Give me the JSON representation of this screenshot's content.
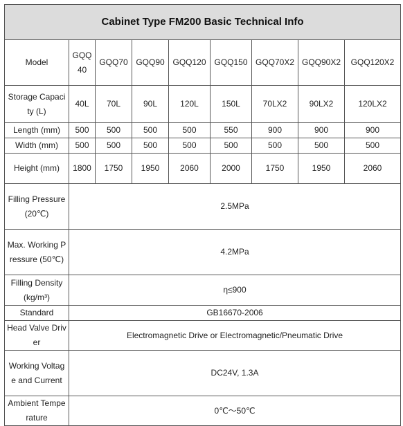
{
  "title": "Cabinet Type FM200 Basic Technical Info",
  "models": {
    "label": "Model",
    "values": [
      "GQQ40",
      "GQQ70",
      "GQQ90",
      "GQQ120",
      "GQQ150",
      "GQQ70X2",
      "GQQ90X2",
      "GQQ120X2"
    ]
  },
  "storage_capacity": {
    "label": "Storage Capacity (L)",
    "values": [
      "40L",
      "70L",
      "90L",
      "120L",
      "150L",
      "70LX2",
      "90LX2",
      "120LX2"
    ]
  },
  "length": {
    "label": "Length (mm)",
    "values": [
      "500",
      "500",
      "500",
      "500",
      "550",
      "900",
      "900",
      "900"
    ]
  },
  "width": {
    "label": "Width (mm)",
    "values": [
      "500",
      "500",
      "500",
      "500",
      "500",
      "500",
      "500",
      "500"
    ]
  },
  "height": {
    "label": "Height (mm)",
    "values": [
      "1800",
      "1750",
      "1950",
      "2060",
      "2000",
      "1750",
      "1950",
      "2060"
    ]
  },
  "filling_pressure": {
    "label": "Filling Pressure (20℃)",
    "value": "2.5MPa"
  },
  "max_working_pressure": {
    "label": "Max. Working Pressure (50℃)",
    "value": "4.2MPa"
  },
  "filling_density": {
    "label": "Filling Density (kg/m³)",
    "value": "η≤900"
  },
  "standard": {
    "label": "Standard",
    "value": "GB16670-2006"
  },
  "head_valve_driver": {
    "label": "Head Valve Driver",
    "value": "Electromagnetic Drive or Electromagnetic/Pneumatic Drive"
  },
  "working_voltage_current": {
    "label": "Working Voltage and Current",
    "value": "DC24V, 1.3A"
  },
  "ambient_temperature": {
    "label": "Ambient Temperature",
    "value": "0℃～50℃"
  }
}
